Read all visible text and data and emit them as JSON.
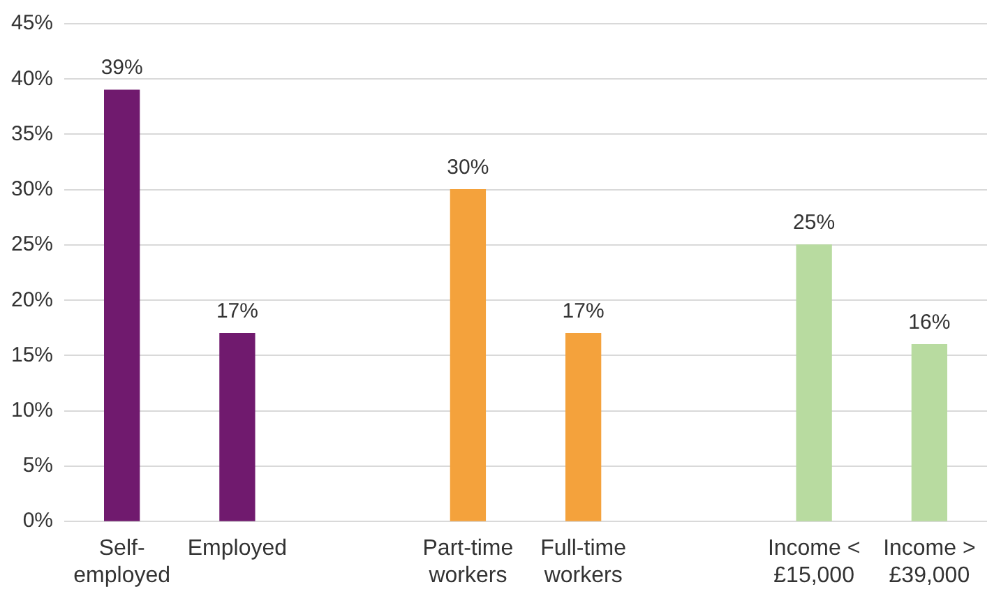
{
  "chart_data": {
    "type": "bar",
    "categories": [
      "Self-\nemployed",
      "Employed",
      null,
      "Part-time\nworkers",
      "Full-time\nworkers",
      null,
      "Income <\n£15,000",
      "Income >\n£39,000"
    ],
    "values": [
      39,
      17,
      null,
      30,
      17,
      null,
      25,
      16
    ],
    "colors": [
      "#701a6e",
      "#701a6e",
      null,
      "#f4a23c",
      "#f4a23c",
      null,
      "#b8dba0",
      "#b8dba0"
    ],
    "value_labels": [
      "39%",
      "17%",
      null,
      "30%",
      "17%",
      null,
      "25%",
      "16%"
    ],
    "ylim": [
      0,
      45
    ],
    "yticks": [
      {
        "value": 0,
        "label": "0%"
      },
      {
        "value": 5,
        "label": "5%"
      },
      {
        "value": 10,
        "label": "10%"
      },
      {
        "value": 15,
        "label": "15%"
      },
      {
        "value": 20,
        "label": "20%"
      },
      {
        "value": 25,
        "label": "25%"
      },
      {
        "value": 30,
        "label": "30%"
      },
      {
        "value": 35,
        "label": "35%"
      },
      {
        "value": 40,
        "label": "40%"
      },
      {
        "value": 45,
        "label": "45%"
      }
    ],
    "grid": "y",
    "legend": false
  }
}
